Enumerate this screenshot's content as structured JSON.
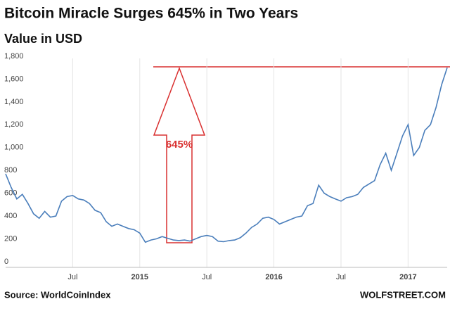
{
  "chart_data": {
    "type": "line",
    "title": "Bitcoin Miracle Surges 645% in Two Years",
    "subtitle": "Value in USD",
    "annotation": "645%",
    "source": "Source: WorldCoinIndex",
    "credit": "WOLFSTREET.COM",
    "x": [
      0,
      0.5,
      1,
      1.5,
      2,
      2.5,
      3,
      3.5,
      4,
      4.5,
      5,
      5.5,
      6,
      6.5,
      7,
      7.5,
      8,
      8.5,
      9,
      9.5,
      10,
      10.5,
      11,
      11.5,
      12,
      12.5,
      13,
      13.5,
      14,
      14.5,
      15,
      15.5,
      16,
      16.5,
      17,
      17.5,
      18,
      18.5,
      19,
      19.5,
      20,
      20.5,
      21,
      21.5,
      22,
      22.5,
      23,
      23.5,
      24,
      24.5,
      25,
      25.5,
      26,
      26.5,
      27,
      27.5,
      28,
      28.5,
      29,
      29.5,
      30,
      30.5,
      31,
      31.5,
      32,
      32.5,
      33,
      33.5,
      34,
      34.5,
      35,
      35.5,
      36,
      36.5,
      37,
      37.5,
      38,
      38.5,
      39,
      39.5
    ],
    "series": [
      {
        "name": "Bitcoin",
        "color": "#4a7ebb",
        "values": [
          820,
          700,
          600,
          640,
          560,
          470,
          430,
          490,
          440,
          450,
          580,
          620,
          630,
          600,
          590,
          560,
          500,
          480,
          400,
          360,
          380,
          360,
          340,
          330,
          300,
          220,
          240,
          250,
          270,
          255,
          240,
          235,
          240,
          230,
          250,
          270,
          280,
          270,
          230,
          225,
          235,
          240,
          260,
          300,
          350,
          380,
          430,
          440,
          420,
          380,
          400,
          420,
          440,
          450,
          540,
          560,
          720,
          650,
          620,
          600,
          580,
          610,
          620,
          640,
          700,
          730,
          760,
          900,
          1000,
          850,
          1000,
          1150,
          1250,
          980,
          1050,
          1200,
          1250,
          1400,
          1600,
          1750
        ]
      }
    ],
    "xlim": [
      0,
      39.5
    ],
    "xticks": [
      {
        "value": 6,
        "label": "Jul"
      },
      {
        "value": 12,
        "label": "2015"
      },
      {
        "value": 18,
        "label": "Jul"
      },
      {
        "value": 24,
        "label": "2016"
      },
      {
        "value": 30,
        "label": "Jul"
      },
      {
        "value": 36,
        "label": "2017"
      }
    ],
    "ylim": [
      0,
      1800
    ],
    "yticks": [
      0,
      200,
      400,
      600,
      800,
      {
        "value": 1000,
        "label": "1,000"
      },
      {
        "value": 1200,
        "label": "1,200"
      },
      {
        "value": 1400,
        "label": "1,400"
      },
      {
        "value": 1600,
        "label": "1,600"
      },
      {
        "value": 1800,
        "label": "1,800"
      }
    ],
    "xgrid": true
  }
}
